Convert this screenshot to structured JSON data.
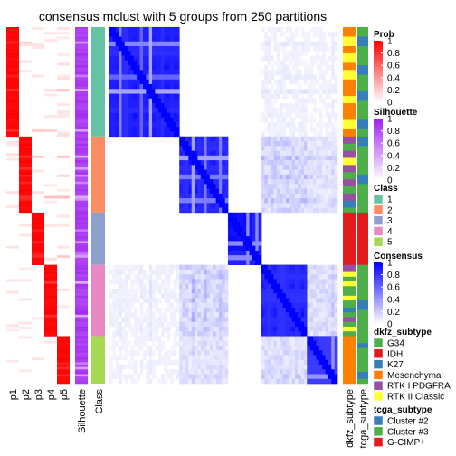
{
  "chart_data": {
    "type": "heatmap",
    "title": "consensus mclust with 5 groups from 250 partitions",
    "group_sizes": [
      46,
      32,
      22,
      30,
      20
    ],
    "matrix_groups": [
      {
        "start": 0,
        "size": 46,
        "level": 0.96
      },
      {
        "start": 46,
        "size": 32,
        "level": 0.97
      },
      {
        "start": 78,
        "size": 22,
        "level": 0.99
      },
      {
        "start": 100,
        "size": 30,
        "level": 0.95
      },
      {
        "start": 130,
        "size": 20,
        "level": 0.85
      }
    ],
    "prob_columns": [
      "p1",
      "p2",
      "p3",
      "p4",
      "p5"
    ],
    "row_labels": [
      "p1",
      "p2",
      "p3",
      "p4",
      "p5",
      "Silhouette",
      "Class",
      "dkfz_subtype",
      "tcga_subtype"
    ],
    "legends": [
      {
        "title": "Prob",
        "type": "gradient",
        "colors": [
          "#ffffff",
          "#ff0000"
        ],
        "ticks": [
          "1",
          "0.8",
          "0.6",
          "0.4",
          "0.2",
          "0"
        ]
      },
      {
        "title": "Silhouette",
        "type": "gradient",
        "colors": [
          "#ffffff",
          "#a020f0"
        ],
        "ticks": [
          "1",
          "0.8",
          "0.6",
          "0.4",
          "0.2",
          "0"
        ]
      },
      {
        "title": "Class",
        "type": "discrete",
        "items": [
          {
            "label": "1",
            "color": "#66c2a5"
          },
          {
            "label": "2",
            "color": "#fc8d62"
          },
          {
            "label": "3",
            "color": "#8da0cb"
          },
          {
            "label": "4",
            "color": "#e78ac3"
          },
          {
            "label": "5",
            "color": "#a6d854"
          }
        ]
      },
      {
        "title": "Consensus",
        "type": "gradient",
        "colors": [
          "#ffffff",
          "#0000ff"
        ],
        "ticks": [
          "1",
          "0.8",
          "0.6",
          "0.4",
          "0.2",
          "0"
        ]
      },
      {
        "title": "dkfz_subtype",
        "type": "discrete",
        "items": [
          {
            "label": "G34",
            "color": "#4daf4a"
          },
          {
            "label": "IDH",
            "color": "#e41a1c"
          },
          {
            "label": "K27",
            "color": "#377eb8"
          },
          {
            "label": "Mesenchymal",
            "color": "#ff7f00"
          },
          {
            "label": "RTK I PDGFRA",
            "color": "#984ea3"
          },
          {
            "label": "RTK II Classic",
            "color": "#ffff33"
          }
        ]
      },
      {
        "title": "tcga_subtype",
        "type": "discrete",
        "items": [
          {
            "label": "Cluster #2",
            "color": "#377eb8"
          },
          {
            "label": "Cluster #3",
            "color": "#4daf4a"
          },
          {
            "label": "G-CIMP+",
            "color": "#e41a1c"
          }
        ]
      }
    ]
  }
}
